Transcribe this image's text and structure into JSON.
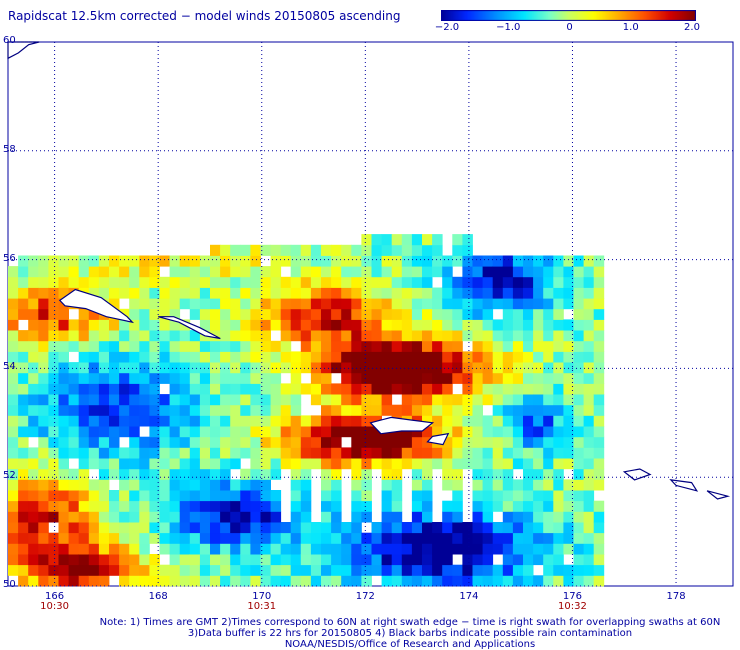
{
  "title": "Rapidscat 12.5km corrected − model winds 20150805 ascending",
  "colorbar": {
    "labels": [
      "−2.0",
      "−1.0",
      "0",
      "1.0",
      "2.0"
    ],
    "values": [
      -2.0,
      -1.0,
      0,
      1.0,
      2.0
    ],
    "colors": [
      "#0000a0",
      "#0040ff",
      "#00a0ff",
      "#00ffff",
      "#80ff80",
      "#ffff00",
      "#ffa000",
      "#ff4000",
      "#c00000",
      "#800000"
    ]
  },
  "map": {
    "lat_labels": [
      "60",
      "58",
      "56",
      "54",
      "52",
      "50"
    ],
    "lat_values": [
      60,
      58,
      56,
      54,
      52,
      50
    ],
    "lon_labels": [
      "166",
      "168",
      "170",
      "172",
      "174",
      "176",
      "178"
    ],
    "lon_values": [
      166,
      168,
      170,
      172,
      174,
      176,
      178
    ],
    "time_labels": [
      "10:30",
      "10:31",
      "10:32"
    ],
    "time_lons": [
      166,
      170,
      176
    ],
    "coastline_color": "#000080",
    "grid_color": "#0000a0"
  },
  "notes": [
    "Note: 1) Times are GMT 2)Times correspond to 60N at right swath edge − time is right swath for overlapping swaths at 60N",
    "3)Data buffer is 22 hrs for 20150805 4) Black barbs indicate possible rain contamination",
    "NOAA/NESDIS/Office of Research and Applications"
  ]
}
